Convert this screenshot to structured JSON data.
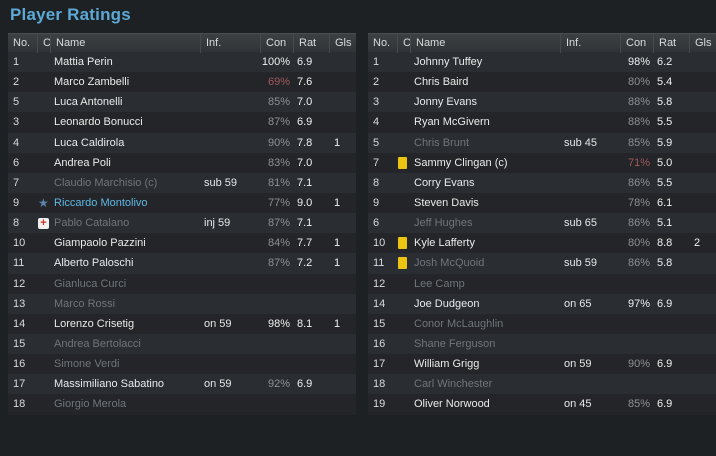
{
  "title": "Player Ratings",
  "table_header": {
    "no": "No.",
    "c": "C",
    "name": "Name",
    "inf": "Inf.",
    "con": "Con",
    "rat": "Rat",
    "gls": "Gls"
  },
  "colors": {
    "title_accent": "#5ca9d6",
    "highlight_name": "#5fb8e6",
    "star_icon": "#5c85ad",
    "yellow_card": "#ecc412",
    "injury_cross": "#cf3328",
    "low_condition": "#a2595e"
  },
  "left_table": {
    "rows": [
      {
        "no": "1",
        "icon": "",
        "name": "Mattia Perin",
        "name_state": "active",
        "inf": "",
        "con": "100%",
        "con_state": "high",
        "rat": "6.9",
        "gls": ""
      },
      {
        "no": "2",
        "icon": "",
        "name": "Marco Zambelli",
        "name_state": "active",
        "inf": "",
        "con": "69%",
        "con_state": "low",
        "rat": "7.6",
        "gls": ""
      },
      {
        "no": "5",
        "icon": "",
        "name": "Luca Antonelli",
        "name_state": "active",
        "inf": "",
        "con": "85%",
        "con_state": "normal",
        "rat": "7.0",
        "gls": ""
      },
      {
        "no": "3",
        "icon": "",
        "name": "Leonardo Bonucci",
        "name_state": "active",
        "inf": "",
        "con": "87%",
        "con_state": "normal",
        "rat": "6.9",
        "gls": ""
      },
      {
        "no": "4",
        "icon": "",
        "name": "Luca Caldirola",
        "name_state": "active",
        "inf": "",
        "con": "90%",
        "con_state": "normal",
        "rat": "7.8",
        "gls": "1"
      },
      {
        "no": "6",
        "icon": "",
        "name": "Andrea Poli",
        "name_state": "active",
        "inf": "",
        "con": "83%",
        "con_state": "normal",
        "rat": "7.0",
        "gls": ""
      },
      {
        "no": "7",
        "icon": "",
        "name": "Claudio Marchisio (c)",
        "name_state": "inactive",
        "inf": "sub 59",
        "con": "81%",
        "con_state": "normal",
        "rat": "7.1",
        "gls": ""
      },
      {
        "no": "9",
        "icon": "star",
        "name": "Riccardo Montolivo",
        "name_state": "highlight",
        "inf": "",
        "con": "77%",
        "con_state": "normal",
        "rat": "9.0",
        "gls": "1"
      },
      {
        "no": "8",
        "icon": "injury",
        "name": "Pablo Catalano",
        "name_state": "inactive",
        "inf": "inj 59",
        "con": "87%",
        "con_state": "normal",
        "rat": "7.1",
        "gls": ""
      },
      {
        "no": "10",
        "icon": "",
        "name": "Giampaolo Pazzini",
        "name_state": "active",
        "inf": "",
        "con": "84%",
        "con_state": "normal",
        "rat": "7.7",
        "gls": "1"
      },
      {
        "no": "11",
        "icon": "",
        "name": "Alberto Paloschi",
        "name_state": "active",
        "inf": "",
        "con": "87%",
        "con_state": "normal",
        "rat": "7.2",
        "gls": "1"
      },
      {
        "no": "12",
        "icon": "",
        "name": "Gianluca Curci",
        "name_state": "inactive",
        "inf": "",
        "con": "",
        "con_state": "normal",
        "rat": "",
        "gls": ""
      },
      {
        "no": "13",
        "icon": "",
        "name": "Marco Rossi",
        "name_state": "inactive",
        "inf": "",
        "con": "",
        "con_state": "normal",
        "rat": "",
        "gls": ""
      },
      {
        "no": "14",
        "icon": "",
        "name": "Lorenzo Crisetig",
        "name_state": "active",
        "inf": "on 59",
        "con": "98%",
        "con_state": "high",
        "rat": "8.1",
        "gls": "1"
      },
      {
        "no": "15",
        "icon": "",
        "name": "Andrea Bertolacci",
        "name_state": "inactive",
        "inf": "",
        "con": "",
        "con_state": "normal",
        "rat": "",
        "gls": ""
      },
      {
        "no": "16",
        "icon": "",
        "name": "Simone Verdi",
        "name_state": "inactive",
        "inf": "",
        "con": "",
        "con_state": "normal",
        "rat": "",
        "gls": ""
      },
      {
        "no": "17",
        "icon": "",
        "name": "Massimiliano Sabatino",
        "name_state": "active",
        "inf": "on 59",
        "con": "92%",
        "con_state": "normal",
        "rat": "6.9",
        "gls": ""
      },
      {
        "no": "18",
        "icon": "",
        "name": "Giorgio Merola",
        "name_state": "inactive",
        "inf": "",
        "con": "",
        "con_state": "normal",
        "rat": "",
        "gls": ""
      }
    ]
  },
  "right_table": {
    "rows": [
      {
        "no": "1",
        "icon": "",
        "name": "Johnny Tuffey",
        "name_state": "active",
        "inf": "",
        "con": "98%",
        "con_state": "high",
        "rat": "6.2",
        "gls": ""
      },
      {
        "no": "2",
        "icon": "",
        "name": "Chris Baird",
        "name_state": "active",
        "inf": "",
        "con": "80%",
        "con_state": "normal",
        "rat": "5.4",
        "gls": ""
      },
      {
        "no": "3",
        "icon": "",
        "name": "Jonny Evans",
        "name_state": "active",
        "inf": "",
        "con": "88%",
        "con_state": "normal",
        "rat": "5.8",
        "gls": ""
      },
      {
        "no": "4",
        "icon": "",
        "name": "Ryan McGivern",
        "name_state": "active",
        "inf": "",
        "con": "88%",
        "con_state": "normal",
        "rat": "5.5",
        "gls": ""
      },
      {
        "no": "5",
        "icon": "",
        "name": "Chris Brunt",
        "name_state": "inactive",
        "inf": "sub 45",
        "con": "85%",
        "con_state": "normal",
        "rat": "5.9",
        "gls": ""
      },
      {
        "no": "7",
        "icon": "yellow-card",
        "name": "Sammy Clingan (c)",
        "name_state": "active",
        "inf": "",
        "con": "71%",
        "con_state": "low",
        "rat": "5.0",
        "gls": ""
      },
      {
        "no": "8",
        "icon": "",
        "name": "Corry Evans",
        "name_state": "active",
        "inf": "",
        "con": "86%",
        "con_state": "normal",
        "rat": "5.5",
        "gls": ""
      },
      {
        "no": "9",
        "icon": "",
        "name": "Steven Davis",
        "name_state": "active",
        "inf": "",
        "con": "78%",
        "con_state": "normal",
        "rat": "6.1",
        "gls": ""
      },
      {
        "no": "6",
        "icon": "",
        "name": "Jeff Hughes",
        "name_state": "inactive",
        "inf": "sub 65",
        "con": "86%",
        "con_state": "normal",
        "rat": "5.1",
        "gls": ""
      },
      {
        "no": "10",
        "icon": "yellow-card",
        "name": "Kyle Lafferty",
        "name_state": "active",
        "inf": "",
        "con": "80%",
        "con_state": "normal",
        "rat": "8.8",
        "gls": "2"
      },
      {
        "no": "11",
        "icon": "yellow-card",
        "name": "Josh McQuoid",
        "name_state": "inactive",
        "inf": "sub 59",
        "con": "86%",
        "con_state": "normal",
        "rat": "5.8",
        "gls": ""
      },
      {
        "no": "12",
        "icon": "",
        "name": "Lee Camp",
        "name_state": "inactive",
        "inf": "",
        "con": "",
        "con_state": "normal",
        "rat": "",
        "gls": ""
      },
      {
        "no": "14",
        "icon": "",
        "name": "Joe Dudgeon",
        "name_state": "active",
        "inf": "on 65",
        "con": "97%",
        "con_state": "high",
        "rat": "6.9",
        "gls": ""
      },
      {
        "no": "15",
        "icon": "",
        "name": "Conor McLaughlin",
        "name_state": "inactive",
        "inf": "",
        "con": "",
        "con_state": "normal",
        "rat": "",
        "gls": ""
      },
      {
        "no": "16",
        "icon": "",
        "name": "Shane Ferguson",
        "name_state": "inactive",
        "inf": "",
        "con": "",
        "con_state": "normal",
        "rat": "",
        "gls": ""
      },
      {
        "no": "17",
        "icon": "",
        "name": "William Grigg",
        "name_state": "active",
        "inf": "on 59",
        "con": "90%",
        "con_state": "normal",
        "rat": "6.9",
        "gls": ""
      },
      {
        "no": "18",
        "icon": "",
        "name": "Carl Winchester",
        "name_state": "inactive",
        "inf": "",
        "con": "",
        "con_state": "normal",
        "rat": "",
        "gls": ""
      },
      {
        "no": "19",
        "icon": "",
        "name": "Oliver Norwood",
        "name_state": "active",
        "inf": "on 45",
        "con": "85%",
        "con_state": "normal",
        "rat": "6.9",
        "gls": ""
      }
    ]
  }
}
